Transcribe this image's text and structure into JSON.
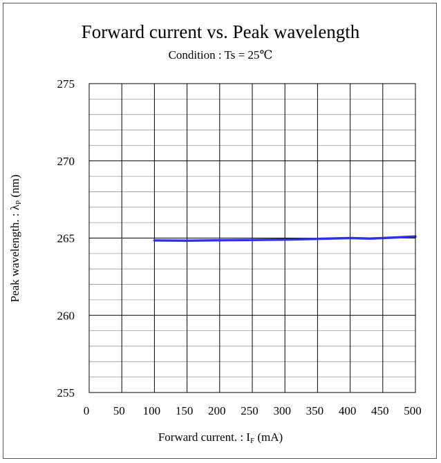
{
  "chart_data": {
    "type": "line",
    "title": "Forward current vs. Peak wavelength",
    "subtitle": "Condition : Ts = 25℃",
    "xlabel": {
      "main": "Forward current. : I",
      "sub": "F",
      "unit": " (mA)"
    },
    "ylabel": {
      "main": "Peak wavelength. : λ",
      "sub": "P",
      "unit": " (nm)"
    },
    "xlim": [
      0,
      500
    ],
    "ylim": [
      255,
      275
    ],
    "x_ticks": [
      0,
      50,
      100,
      150,
      200,
      250,
      300,
      350,
      400,
      450,
      500
    ],
    "y_ticks": [
      255,
      260,
      265,
      270,
      275
    ],
    "y_minor_step": 1,
    "grid": true,
    "series": [
      {
        "color": "#3333dd",
        "x": [
          100,
          150,
          200,
          250,
          300,
          350,
          400,
          430,
          450,
          500
        ],
        "y": [
          264.85,
          264.83,
          264.86,
          264.88,
          264.9,
          264.95,
          265.0,
          264.97,
          265.0,
          265.1
        ]
      }
    ]
  }
}
